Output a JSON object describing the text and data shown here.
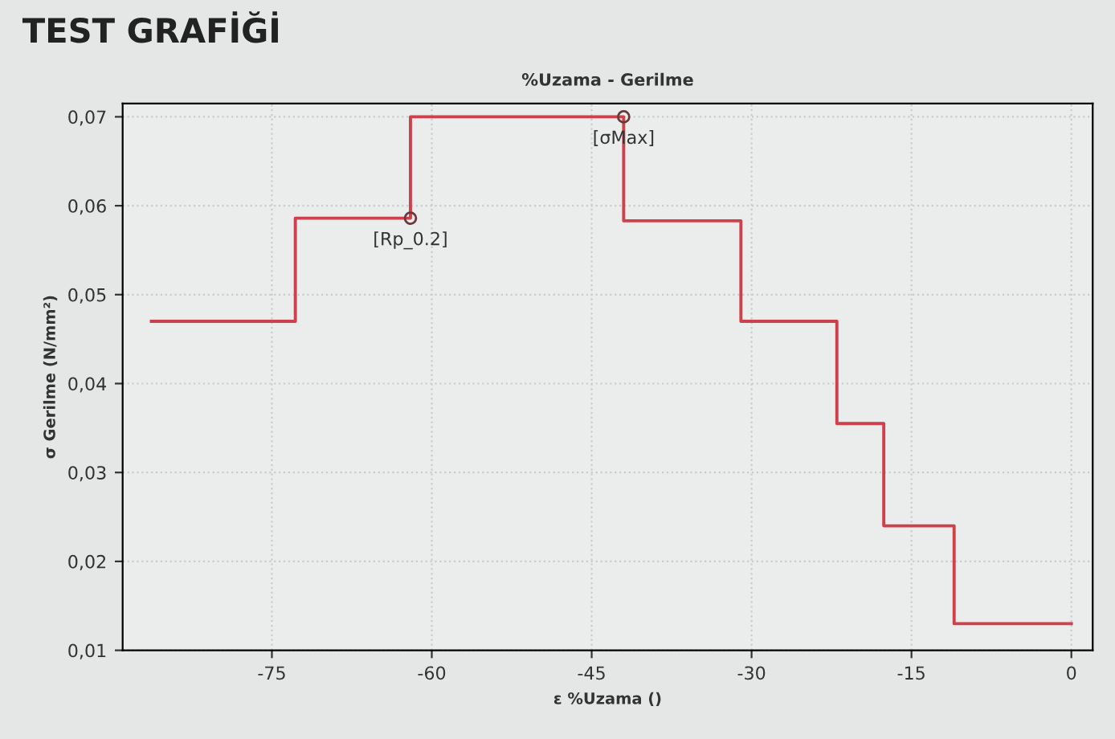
{
  "chart_data": {
    "type": "step",
    "title": "TEST GRAFİĞİ",
    "subtitle": "%Uzama - Gerilme",
    "xlabel": "ε %Uzama ()",
    "ylabel": "σ Gerilme (N/mm²)",
    "x": [
      -86.3,
      -72.8,
      -62,
      -42,
      -31,
      -22,
      -17.6,
      -11,
      0
    ],
    "series": [
      {
        "color": "#d0404a",
        "values": [
          0.047,
          0.0586,
          0.07,
          0.0583,
          0.047,
          0.0355,
          0.024,
          0.013,
          0.013
        ]
      }
    ],
    "annotations": [
      {
        "text": "[Rp_0.2]",
        "x": -62,
        "y": 0.0586
      },
      {
        "text": "[σMax]",
        "x": -42,
        "y": 0.07
      }
    ],
    "xlim": [
      -89,
      2
    ],
    "xticks": [
      -75,
      -60,
      -45,
      -30,
      -15,
      0
    ],
    "ylim": [
      0.01,
      0.0715
    ],
    "yticks": [
      {
        "value": 0.01,
        "label": "0,01"
      },
      {
        "value": 0.02,
        "label": "0,02"
      },
      {
        "value": 0.03,
        "label": "0,03"
      },
      {
        "value": 0.04,
        "label": "0,04"
      },
      {
        "value": 0.05,
        "label": "0,05"
      },
      {
        "value": 0.06,
        "label": "0,06"
      },
      {
        "value": 0.07,
        "label": "0,07"
      }
    ],
    "grid": true,
    "line_style": "solid"
  }
}
